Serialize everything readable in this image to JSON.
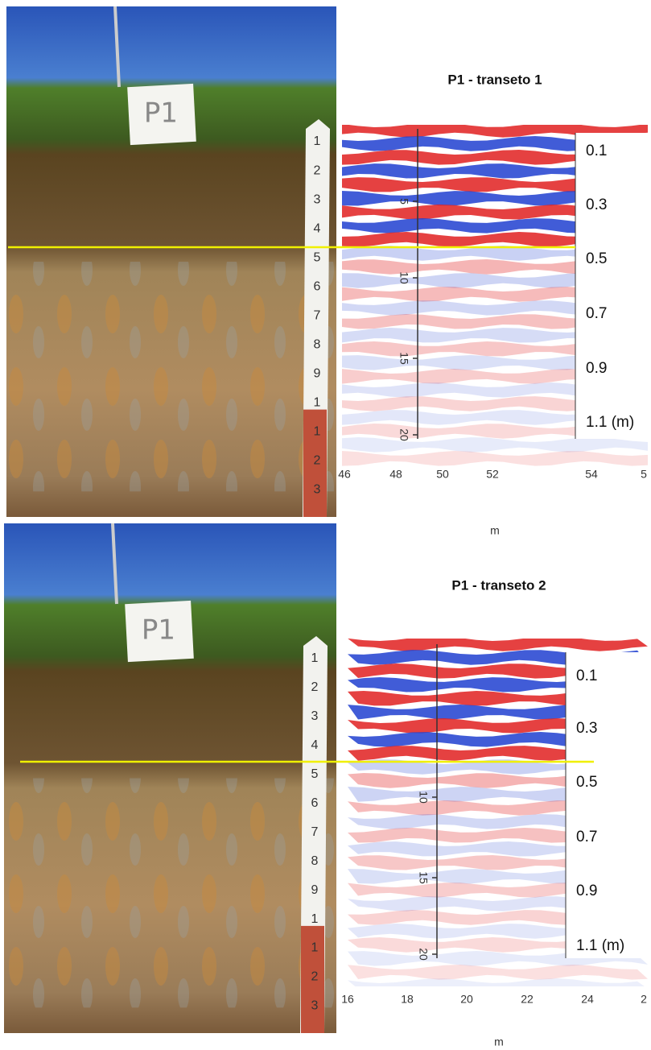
{
  "panels": [
    {
      "sign": "P1",
      "ruler_labels": [
        "1",
        "2",
        "3",
        "4",
        "5",
        "6",
        "7",
        "8",
        "9",
        "1",
        "1",
        "2",
        "3"
      ],
      "title": "P1 - transeto 1",
      "depth_labels": [
        "0.1",
        "0.3",
        "0.5",
        "0.7",
        "0.9",
        "1.1 (m)"
      ],
      "scale_ticks": [
        "5",
        "10",
        "15",
        "20"
      ],
      "x_ticks": [
        "46",
        "48",
        "50",
        "52",
        "54",
        "5"
      ],
      "x_axis_label": "m"
    },
    {
      "sign": "P1",
      "ruler_labels": [
        "1",
        "2",
        "3",
        "4",
        "5",
        "6",
        "7",
        "8",
        "9",
        "1",
        "1",
        "2",
        "3"
      ],
      "title": "P1 - transeto 2",
      "depth_labels": [
        "0.1",
        "0.3",
        "0.5",
        "0.7",
        "0.9",
        "1.1 (m)"
      ],
      "scale_ticks": [
        "10",
        "15",
        "20"
      ],
      "x_ticks": [
        "16",
        "18",
        "20",
        "22",
        "24",
        "2"
      ],
      "x_axis_label": "m"
    }
  ]
}
